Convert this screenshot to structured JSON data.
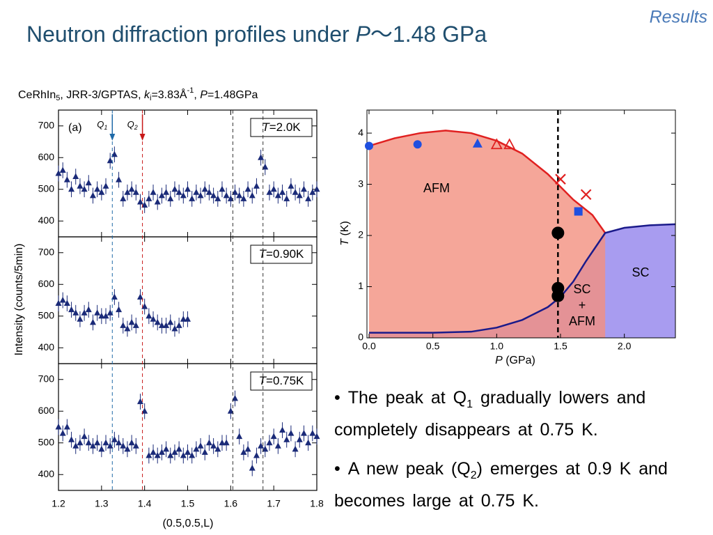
{
  "header": {
    "title_parts": [
      "Neutron diffraction profiles under ",
      "P",
      "～1.48 GPa"
    ],
    "section": "Results"
  },
  "bullets": [
    {
      "parts": [
        "The peak at Q",
        "1",
        " gradually lowers and completely disappears at 0.75 K."
      ]
    },
    {
      "parts": [
        "A new peak (Q",
        "2",
        ") emerges at 0.9 K and becomes large at 0.75 K."
      ]
    }
  ],
  "chart_data": [
    {
      "type": "scatter",
      "title_parts": [
        "CeRhIn",
        "5",
        ", JRR-3/GPTAS, ",
        "k",
        "i",
        "=3.83Å",
        "-1",
        ", ",
        "P",
        "=1.48GPa"
      ],
      "xlabel": "(0.5,0.5,L)",
      "ylabel": "Intensity (counts/5min)",
      "xlim": [
        1.2,
        1.8
      ],
      "xticks": [
        1.2,
        1.3,
        1.4,
        1.5,
        1.6,
        1.7,
        1.8
      ],
      "color": "#1a2a78",
      "vlines": [
        {
          "x": 1.325,
          "color": "#1f6aa8",
          "label": [
            "Q",
            "1"
          ]
        },
        {
          "x": 1.395,
          "color": "#c81818",
          "label": [
            "Q",
            "2"
          ]
        },
        {
          "x": 1.605,
          "color": "#333333"
        },
        {
          "x": 1.675,
          "color": "#333333"
        }
      ],
      "panels": [
        {
          "label": "(a)",
          "temp_parts": [
            "T",
            "=2.0K"
          ],
          "ylim": [
            350,
            750
          ],
          "yticks": [
            400,
            500,
            600,
            700
          ],
          "error": 25,
          "x": [
            1.2,
            1.21,
            1.22,
            1.23,
            1.24,
            1.25,
            1.26,
            1.27,
            1.28,
            1.29,
            1.3,
            1.31,
            1.32,
            1.33,
            1.34,
            1.35,
            1.36,
            1.37,
            1.38,
            1.39,
            1.4,
            1.41,
            1.42,
            1.43,
            1.44,
            1.45,
            1.46,
            1.47,
            1.48,
            1.49,
            1.5,
            1.51,
            1.52,
            1.53,
            1.54,
            1.55,
            1.56,
            1.57,
            1.58,
            1.59,
            1.6,
            1.61,
            1.62,
            1.63,
            1.64,
            1.65,
            1.66,
            1.67,
            1.68,
            1.69,
            1.7,
            1.71,
            1.72,
            1.73,
            1.74,
            1.75,
            1.76,
            1.77,
            1.78,
            1.79,
            1.8
          ],
          "values": [
            550,
            560,
            530,
            500,
            540,
            510,
            500,
            520,
            480,
            500,
            490,
            510,
            590,
            610,
            530,
            470,
            490,
            500,
            490,
            460,
            450,
            470,
            490,
            460,
            480,
            490,
            470,
            500,
            490,
            480,
            500,
            470,
            490,
            480,
            500,
            490,
            480,
            470,
            500,
            480,
            470,
            490,
            480,
            470,
            500,
            480,
            510,
            600,
            570,
            490,
            500,
            480,
            490,
            470,
            510,
            490,
            480,
            500,
            470,
            490,
            500
          ]
        },
        {
          "temp_parts": [
            "T",
            "=0.90K"
          ],
          "ylim": [
            350,
            750
          ],
          "yticks": [
            400,
            500,
            600,
            700
          ],
          "error": 25,
          "x": [
            1.2,
            1.21,
            1.22,
            1.23,
            1.24,
            1.25,
            1.26,
            1.27,
            1.28,
            1.29,
            1.3,
            1.31,
            1.32,
            1.33,
            1.34,
            1.35,
            1.36,
            1.37,
            1.38,
            1.39,
            1.4,
            1.41,
            1.42,
            1.43,
            1.44,
            1.45,
            1.46,
            1.47,
            1.48,
            1.49,
            1.5
          ],
          "values": [
            540,
            550,
            540,
            520,
            510,
            490,
            510,
            520,
            480,
            510,
            500,
            500,
            510,
            560,
            520,
            470,
            460,
            480,
            470,
            560,
            530,
            500,
            490,
            480,
            470,
            470,
            480,
            460,
            470,
            490,
            490
          ]
        },
        {
          "temp_parts": [
            "T",
            "=0.75K"
          ],
          "ylim": [
            350,
            750
          ],
          "yticks": [
            400,
            500,
            600,
            700
          ],
          "error": 25,
          "x": [
            1.2,
            1.21,
            1.22,
            1.23,
            1.24,
            1.25,
            1.26,
            1.27,
            1.28,
            1.29,
            1.3,
            1.31,
            1.32,
            1.33,
            1.34,
            1.35,
            1.36,
            1.37,
            1.38,
            1.39,
            1.4,
            1.41,
            1.42,
            1.43,
            1.44,
            1.45,
            1.46,
            1.47,
            1.48,
            1.49,
            1.5,
            1.51,
            1.52,
            1.53,
            1.54,
            1.55,
            1.56,
            1.57,
            1.58,
            1.59,
            1.6,
            1.61,
            1.62,
            1.63,
            1.64,
            1.65,
            1.66,
            1.67,
            1.68,
            1.69,
            1.7,
            1.71,
            1.72,
            1.73,
            1.74,
            1.75,
            1.76,
            1.77,
            1.78,
            1.79,
            1.8
          ],
          "values": [
            550,
            530,
            550,
            510,
            490,
            500,
            520,
            500,
            490,
            500,
            480,
            500,
            490,
            510,
            500,
            490,
            480,
            500,
            490,
            630,
            600,
            460,
            470,
            460,
            470,
            480,
            460,
            470,
            480,
            460,
            470,
            460,
            480,
            490,
            470,
            500,
            490,
            480,
            500,
            500,
            600,
            640,
            520,
            470,
            480,
            420,
            460,
            490,
            480,
            500,
            520,
            490,
            540,
            510,
            530,
            480,
            510,
            530,
            500,
            530,
            520
          ]
        }
      ]
    },
    {
      "type": "phase",
      "xlabel_parts": [
        "P",
        " (GPa)"
      ],
      "ylabel_parts": [
        "T",
        " (K)"
      ],
      "xlim": [
        0,
        2.4
      ],
      "xticks": [
        {
          "value": 0,
          "label": "0.0"
        },
        0.5,
        {
          "value": 1,
          "label": "1.0"
        },
        1.5,
        {
          "value": 2,
          "label": "2.0"
        }
      ],
      "ylim": [
        0,
        4.45
      ],
      "yticks": [
        0,
        1,
        2,
        3,
        4
      ],
      "region_labels": {
        "afm": "AFM",
        "sc": "SC",
        "coexist": [
          "SC",
          "+",
          "AFM"
        ]
      },
      "vline": 1.48,
      "series": [
        {
          "color": "#e02020",
          "fill": "#f29080",
          "x": [
            0,
            0.2,
            0.4,
            0.6,
            0.8,
            1.0,
            1.2,
            1.4,
            1.6,
            1.75,
            1.85
          ],
          "values": [
            3.75,
            3.9,
            4.0,
            4.05,
            4.0,
            3.85,
            3.6,
            3.2,
            2.7,
            2.4,
            2.05
          ]
        },
        {
          "color": "#1a1a8a",
          "fill": "#a89cf0",
          "x": [
            0,
            0.5,
            0.8,
            1.0,
            1.2,
            1.4,
            1.5,
            1.6,
            1.7,
            1.85,
            2.0,
            2.2,
            2.4
          ],
          "values": [
            0.1,
            0.1,
            0.12,
            0.2,
            0.35,
            0.6,
            0.8,
            1.1,
            1.5,
            2.05,
            2.15,
            2.2,
            2.22
          ]
        }
      ],
      "markers": [
        {
          "marker": "circle",
          "color": "#1f4fe0",
          "x": [
            0,
            0.38
          ],
          "values": [
            3.75,
            3.78
          ]
        },
        {
          "marker": "triangle",
          "color": "#1f4fe0",
          "x": [
            0.85
          ],
          "values": [
            3.8
          ]
        },
        {
          "marker": "triangle-open",
          "color": "#e02020",
          "x": [
            1.0,
            1.1
          ],
          "values": [
            3.78,
            3.78
          ]
        },
        {
          "marker": "cross",
          "color": "#e02020",
          "x": [
            1.5,
            1.7
          ],
          "values": [
            3.1,
            2.8
          ]
        },
        {
          "marker": "square",
          "color": "#1f4fe0",
          "x": [
            1.64
          ],
          "values": [
            2.47
          ]
        },
        {
          "marker": "big-circle",
          "color": "#000000",
          "x": [
            1.48,
            1.48,
            1.48
          ],
          "values": [
            2.05,
            0.97,
            0.82
          ]
        }
      ]
    }
  ]
}
